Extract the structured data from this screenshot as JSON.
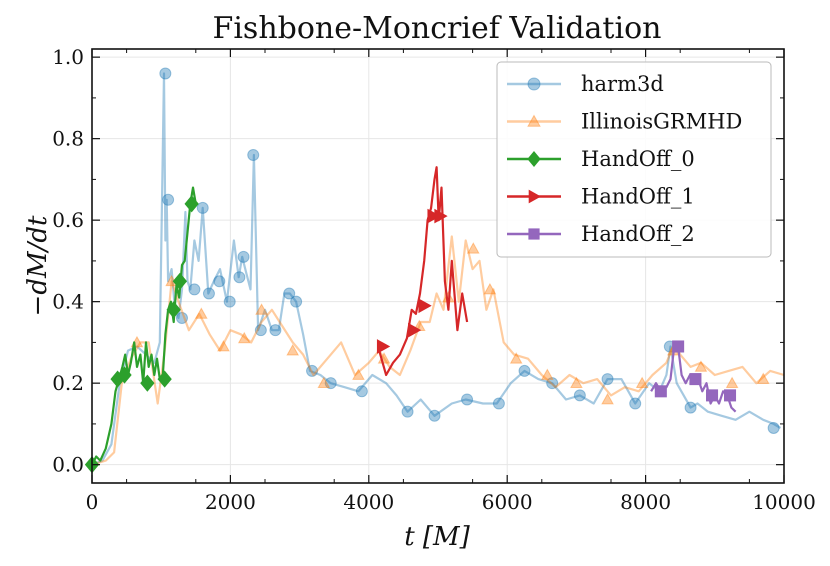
{
  "chart_data": {
    "type": "line",
    "title": "Fishbone-Moncrief Validation",
    "xlabel": "t [M]",
    "ylabel": "−dM/dt",
    "xlim": [
      0,
      10000
    ],
    "ylim": [
      -0.045,
      1.02
    ],
    "x_ticks": [
      0,
      2000,
      4000,
      6000,
      8000,
      10000
    ],
    "x_tick_labels": [
      "0",
      "2000",
      "4000",
      "6000",
      "8000",
      "10000"
    ],
    "y_ticks": [
      0.0,
      0.2,
      0.4,
      0.6,
      0.8,
      1.0
    ],
    "y_tick_labels": [
      "0.0",
      "0.2",
      "0.4",
      "0.6",
      "0.8",
      "1.0"
    ],
    "grid": true,
    "legend_position": "top-right",
    "series": [
      {
        "name": "harm3d",
        "color": "#1f77b4",
        "alpha": 0.4,
        "marker": "circle",
        "x": [
          0,
          150,
          280,
          400,
          520,
          650,
          780,
          900,
          980,
          1040,
          1060,
          1080,
          1100,
          1150,
          1200,
          1250,
          1300,
          1350,
          1380,
          1420,
          1480,
          1540,
          1600,
          1680,
          1760,
          1850,
          1950,
          2050,
          2120,
          2170,
          2230,
          2290,
          2340,
          2400,
          2500,
          2600,
          2700,
          2780,
          2860,
          2950,
          3050,
          3150,
          3300,
          3450,
          3650,
          3850,
          4050,
          4250,
          4400,
          4560,
          4750,
          4950,
          5200,
          5400,
          5650,
          5850,
          6050,
          6250,
          6450,
          6650,
          6850,
          7050,
          7250,
          7450,
          7650,
          7850,
          8050,
          8200,
          8300,
          8360,
          8450,
          8550,
          8650,
          8750,
          8900,
          9100,
          9300,
          9500,
          9700,
          9850,
          9950
        ],
        "y": [
          0.0,
          0.01,
          0.05,
          0.2,
          0.28,
          0.29,
          0.27,
          0.25,
          0.3,
          0.96,
          0.55,
          0.65,
          0.45,
          0.48,
          0.38,
          0.36,
          0.43,
          0.62,
          0.45,
          0.43,
          0.55,
          0.5,
          0.63,
          0.42,
          0.45,
          0.48,
          0.4,
          0.55,
          0.46,
          0.51,
          0.47,
          0.43,
          0.76,
          0.33,
          0.38,
          0.33,
          0.33,
          0.42,
          0.42,
          0.4,
          0.32,
          0.23,
          0.22,
          0.2,
          0.19,
          0.18,
          0.22,
          0.2,
          0.17,
          0.13,
          0.16,
          0.12,
          0.15,
          0.16,
          0.15,
          0.15,
          0.2,
          0.23,
          0.21,
          0.2,
          0.16,
          0.17,
          0.15,
          0.21,
          0.21,
          0.15,
          0.2,
          0.18,
          0.22,
          0.29,
          0.2,
          0.17,
          0.14,
          0.15,
          0.13,
          0.12,
          0.11,
          0.13,
          0.11,
          0.1,
          0.09
        ],
        "marker_x": [
          1060,
          1100,
          1300,
          1480,
          1600,
          1690,
          1840,
          1990,
          2130,
          2190,
          2330,
          2440,
          2650,
          2850,
          2950,
          3180,
          3450,
          3900,
          4560,
          4950,
          5420,
          5880,
          6250,
          6650,
          7050,
          7450,
          7850,
          8350,
          8650,
          9850
        ],
        "marker_y": [
          0.96,
          0.65,
          0.36,
          0.43,
          0.63,
          0.42,
          0.45,
          0.4,
          0.46,
          0.51,
          0.76,
          0.33,
          0.33,
          0.42,
          0.4,
          0.23,
          0.2,
          0.18,
          0.13,
          0.12,
          0.16,
          0.15,
          0.23,
          0.2,
          0.17,
          0.21,
          0.15,
          0.29,
          0.14,
          0.09
        ]
      },
      {
        "name": "IllinoisGRMHD",
        "color": "#ff7f0e",
        "alpha": 0.4,
        "marker": "triangle-up",
        "x": [
          0,
          200,
          320,
          430,
          560,
          700,
          820,
          950,
          1050,
          1150,
          1250,
          1400,
          1550,
          1700,
          1850,
          2000,
          2150,
          2300,
          2450,
          2600,
          2750,
          2900,
          3050,
          3200,
          3400,
          3600,
          3800,
          4000,
          4150,
          4300,
          4450,
          4600,
          4750,
          4880,
          4980,
          5080,
          5200,
          5300,
          5400,
          5500,
          5600,
          5700,
          5800,
          5950,
          6100,
          6300,
          6500,
          6700,
          6900,
          7100,
          7300,
          7500,
          7700,
          7900,
          8100,
          8300,
          8420,
          8500,
          8650,
          8800,
          9000,
          9200,
          9400,
          9600,
          9800,
          10000
        ],
        "y": [
          0.0,
          0.01,
          0.03,
          0.2,
          0.26,
          0.3,
          0.3,
          0.15,
          0.28,
          0.45,
          0.4,
          0.33,
          0.37,
          0.32,
          0.28,
          0.33,
          0.32,
          0.3,
          0.35,
          0.38,
          0.34,
          0.3,
          0.27,
          0.22,
          0.26,
          0.3,
          0.22,
          0.25,
          0.28,
          0.24,
          0.22,
          0.28,
          0.35,
          0.35,
          0.42,
          0.38,
          0.56,
          0.4,
          0.55,
          0.48,
          0.5,
          0.38,
          0.43,
          0.3,
          0.27,
          0.26,
          0.22,
          0.19,
          0.22,
          0.2,
          0.21,
          0.17,
          0.19,
          0.18,
          0.22,
          0.25,
          0.3,
          0.27,
          0.24,
          0.25,
          0.22,
          0.23,
          0.24,
          0.2,
          0.23,
          0.22
        ],
        "marker_x": [
          650,
          1150,
          1580,
          1900,
          2200,
          2450,
          2900,
          3350,
          3850,
          4220,
          4730,
          5150,
          5510,
          5750,
          6130,
          6580,
          7000,
          7450,
          7950,
          8400,
          8800,
          9250,
          9700
        ],
        "marker_y": [
          0.3,
          0.45,
          0.37,
          0.29,
          0.31,
          0.38,
          0.28,
          0.2,
          0.22,
          0.26,
          0.34,
          0.41,
          0.53,
          0.43,
          0.26,
          0.22,
          0.2,
          0.16,
          0.2,
          0.28,
          0.24,
          0.2,
          0.21
        ]
      },
      {
        "name": "HandOff_0",
        "color": "#2ca02c",
        "alpha": 1.0,
        "marker": "diamond",
        "x": [
          0,
          60,
          120,
          200,
          280,
          340,
          390,
          440,
          480,
          520,
          560,
          610,
          650,
          700,
          740,
          780,
          820,
          860,
          900,
          940,
          980,
          1020,
          1060,
          1100,
          1140,
          1180,
          1220,
          1260,
          1300,
          1340,
          1380,
          1420,
          1460,
          1500
        ],
        "y": [
          0.0,
          0.02,
          0.01,
          0.04,
          0.1,
          0.18,
          0.21,
          0.24,
          0.27,
          0.22,
          0.25,
          0.3,
          0.24,
          0.27,
          0.2,
          0.3,
          0.24,
          0.27,
          0.22,
          0.26,
          0.21,
          0.21,
          0.32,
          0.38,
          0.4,
          0.35,
          0.44,
          0.41,
          0.49,
          0.5,
          0.57,
          0.64,
          0.68,
          0.64
        ],
        "marker_x": [
          0,
          370,
          470,
          800,
          1050,
          1180,
          1270,
          1440
        ],
        "marker_y": [
          0.0,
          0.21,
          0.22,
          0.2,
          0.21,
          0.38,
          0.45,
          0.64
        ]
      },
      {
        "name": "HandOff_1",
        "color": "#d62728",
        "alpha": 1.0,
        "marker": "triangle-right",
        "x": [
          4150,
          4250,
          4350,
          4450,
          4550,
          4620,
          4680,
          4740,
          4800,
          4850,
          4900,
          4950,
          4980,
          5010,
          5050,
          5100,
          5150,
          5200,
          5280,
          5350,
          5420
        ],
        "y": [
          0.28,
          0.22,
          0.25,
          0.27,
          0.31,
          0.38,
          0.37,
          0.42,
          0.5,
          0.6,
          0.63,
          0.7,
          0.73,
          0.6,
          0.68,
          0.45,
          0.38,
          0.5,
          0.33,
          0.42,
          0.35
        ],
        "marker_x": [
          4200,
          4650,
          4800,
          4930,
          5030
        ],
        "marker_y": [
          0.29,
          0.33,
          0.39,
          0.61,
          0.61
        ]
      },
      {
        "name": "HandOff_2",
        "color": "#9467bd",
        "alpha": 1.0,
        "marker": "square",
        "x": [
          8080,
          8150,
          8220,
          8300,
          8360,
          8420,
          8470,
          8520,
          8580,
          8640,
          8700,
          8760,
          8820,
          8880,
          8940,
          9000,
          9060,
          9120,
          9180,
          9240,
          9300
        ],
        "y": [
          0.18,
          0.2,
          0.18,
          0.19,
          0.21,
          0.3,
          0.29,
          0.22,
          0.2,
          0.22,
          0.2,
          0.21,
          0.18,
          0.2,
          0.15,
          0.17,
          0.15,
          0.18,
          0.17,
          0.14,
          0.13
        ],
        "marker_x": [
          8220,
          8470,
          8720,
          8960,
          9220
        ],
        "marker_y": [
          0.18,
          0.29,
          0.21,
          0.17,
          0.17
        ]
      }
    ]
  }
}
